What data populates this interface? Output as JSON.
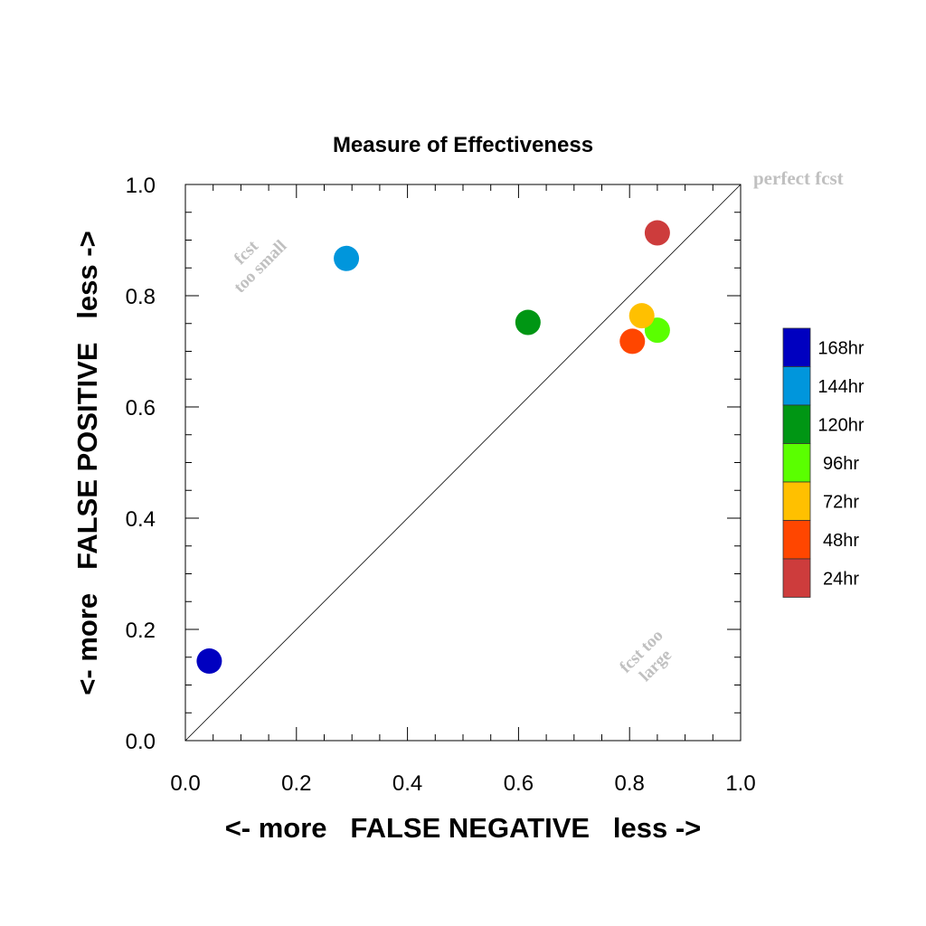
{
  "chart_data": {
    "type": "scatter",
    "title": "Measure of Effectiveness",
    "xlabel": "<- more   FALSE NEGATIVE   less ->",
    "ylabel": "<- more   FALSE POSITIVE   less ->",
    "xlim": [
      0.0,
      1.0
    ],
    "ylim": [
      0.0,
      1.0
    ],
    "xticks": [
      "0.0",
      "0.2",
      "0.4",
      "0.6",
      "0.8",
      "1.0"
    ],
    "yticks": [
      "0.0",
      "0.2",
      "0.4",
      "0.6",
      "0.8",
      "1.0"
    ],
    "grid": false,
    "legend_position": "right",
    "reference_line": {
      "from": [
        0,
        0
      ],
      "to": [
        1,
        1
      ]
    },
    "annotations": {
      "perfect": "perfect fcst",
      "small_line1": "fcst",
      "small_line2": "too small",
      "large_line1": "fcst too",
      "large_line2": "large"
    },
    "series": [
      {
        "name": "168hr",
        "color": "#0000c0",
        "x": 0.043,
        "y": 0.143
      },
      {
        "name": "144hr",
        "color": "#0096dc",
        "x": 0.29,
        "y": 0.867
      },
      {
        "name": "120hr",
        "color": "#009614",
        "x": 0.617,
        "y": 0.752
      },
      {
        "name": "96hr",
        "color": "#5aff00",
        "x": 0.85,
        "y": 0.738
      },
      {
        "name": "72hr",
        "color": "#ffc000",
        "x": 0.822,
        "y": 0.764
      },
      {
        "name": "48hr",
        "color": "#ff4600",
        "x": 0.805,
        "y": 0.718
      },
      {
        "name": "24hr",
        "color": "#cd3c3c",
        "x": 0.85,
        "y": 0.913
      }
    ]
  }
}
